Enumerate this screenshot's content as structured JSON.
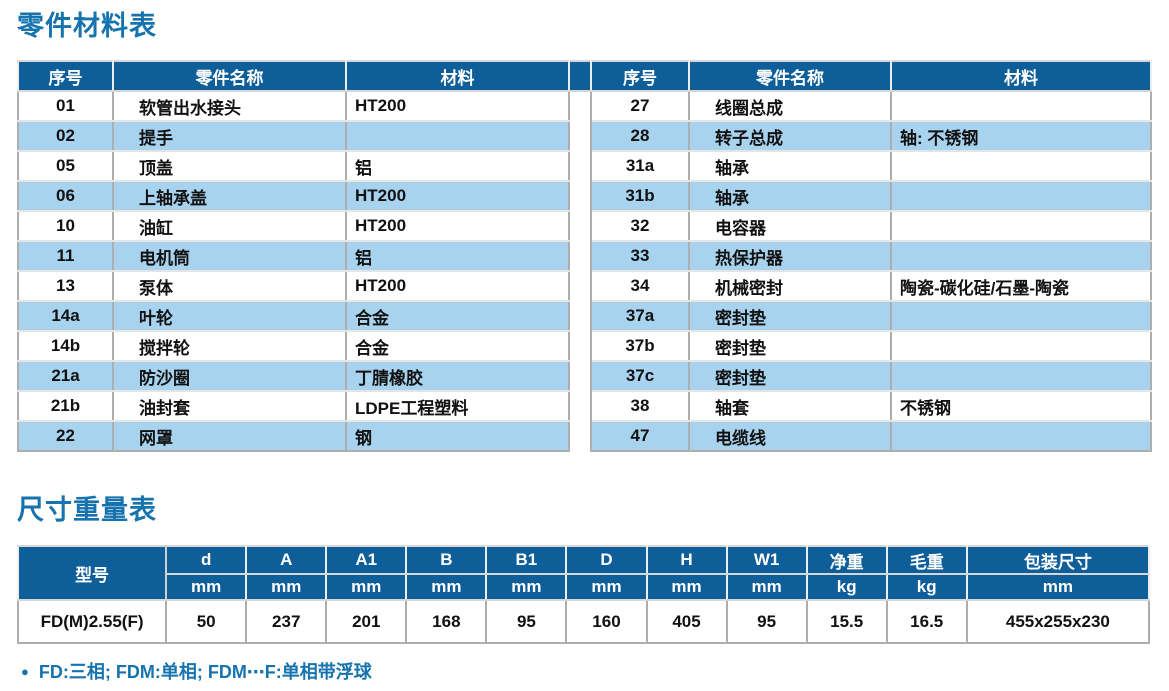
{
  "titles": {
    "parts": "零件材料表",
    "dims": "尺寸重量表"
  },
  "parts_table": {
    "headers": {
      "no": "序号",
      "name": "零件名称",
      "material": "材料"
    },
    "left_rows": [
      {
        "no": "01",
        "name": "软管出水接头",
        "material": "HT200"
      },
      {
        "no": "02",
        "name": "提手",
        "material": ""
      },
      {
        "no": "05",
        "name": "顶盖",
        "material": "铝"
      },
      {
        "no": "06",
        "name": "上轴承盖",
        "material": "HT200"
      },
      {
        "no": "10",
        "name": "油缸",
        "material": "HT200"
      },
      {
        "no": "11",
        "name": "电机筒",
        "material": "铝"
      },
      {
        "no": "13",
        "name": "泵体",
        "material": "HT200"
      },
      {
        "no": "14a",
        "name": "叶轮",
        "material": "合金"
      },
      {
        "no": "14b",
        "name": "搅拌轮",
        "material": "合金"
      },
      {
        "no": "21a",
        "name": "防沙圈",
        "material": "丁腈橡胶"
      },
      {
        "no": "21b",
        "name": "油封套",
        "material": "LDPE工程塑料"
      },
      {
        "no": "22",
        "name": "网罩",
        "material": "钢"
      }
    ],
    "right_rows": [
      {
        "no": "27",
        "name": "线圈总成",
        "material": ""
      },
      {
        "no": "28",
        "name": "转子总成",
        "material": "轴: 不锈钢"
      },
      {
        "no": "31a",
        "name": "轴承",
        "material": ""
      },
      {
        "no": "31b",
        "name": "轴承",
        "material": ""
      },
      {
        "no": "32",
        "name": "电容器",
        "material": ""
      },
      {
        "no": "33",
        "name": "热保护器",
        "material": ""
      },
      {
        "no": "34",
        "name": "机械密封",
        "material": "陶瓷-碳化硅/石墨-陶瓷"
      },
      {
        "no": "37a",
        "name": "密封垫",
        "material": ""
      },
      {
        "no": "37b",
        "name": "密封垫",
        "material": ""
      },
      {
        "no": "37c",
        "name": "密封垫",
        "material": ""
      },
      {
        "no": "38",
        "name": "轴套",
        "material": "不锈钢"
      },
      {
        "no": "47",
        "name": "电缆线",
        "material": ""
      }
    ]
  },
  "dims_table": {
    "model_header": "型号",
    "columns": [
      {
        "label": "d",
        "unit": "mm"
      },
      {
        "label": "A",
        "unit": "mm"
      },
      {
        "label": "A1",
        "unit": "mm"
      },
      {
        "label": "B",
        "unit": "mm"
      },
      {
        "label": "B1",
        "unit": "mm"
      },
      {
        "label": "D",
        "unit": "mm"
      },
      {
        "label": "H",
        "unit": "mm"
      },
      {
        "label": "W1",
        "unit": "mm"
      },
      {
        "label": "净重",
        "unit": "kg"
      },
      {
        "label": "毛重",
        "unit": "kg"
      },
      {
        "label": "包装尺寸",
        "unit": "mm"
      }
    ],
    "row": {
      "model": "FD(M)2.55(F)",
      "values": [
        "50",
        "237",
        "201",
        "168",
        "95",
        "160",
        "405",
        "95",
        "15.5",
        "16.5",
        "455x255x230"
      ]
    }
  },
  "note": {
    "bullet": "●",
    "text": "FD:三相; FDM:单相; FDM⋯F:单相带浮球"
  },
  "colors": {
    "header_bg": "#0e5e99",
    "stripe_bg": "#a8d3ef",
    "accent_text": "#1673ae"
  }
}
